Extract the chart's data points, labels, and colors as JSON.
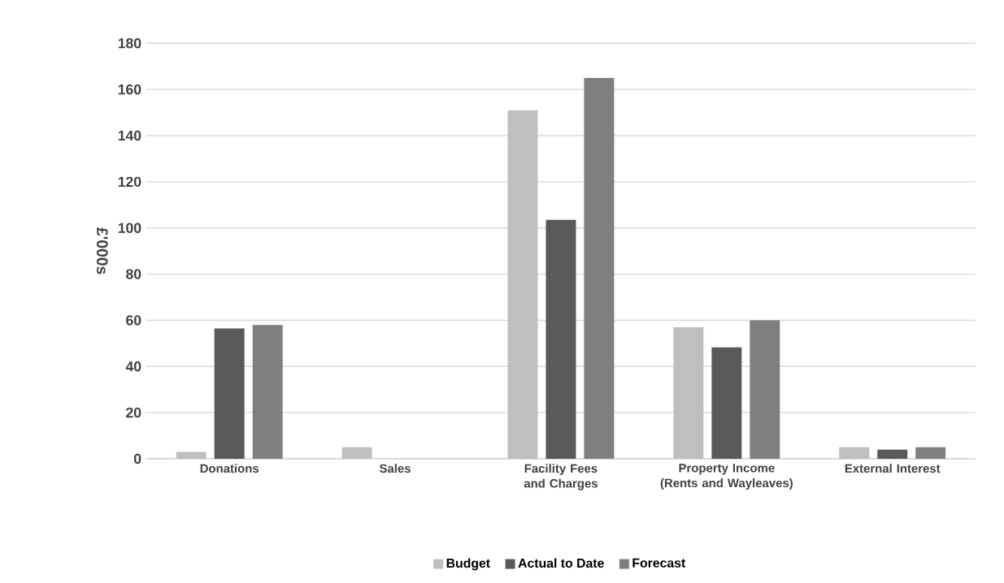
{
  "chart_data": {
    "type": "bar",
    "ylabel": "£'000s",
    "categories": [
      "Donations",
      "Sales",
      "Facility Fees and Charges",
      "Property Income (Rents and Wayleaves)",
      "External Interest"
    ],
    "series": [
      {
        "name": "Budget",
        "color": "#bfbfbf",
        "values": [
          3,
          5,
          151,
          57,
          5
        ]
      },
      {
        "name": "Actual to Date",
        "color": "#595959",
        "values": [
          56.5,
          0,
          103.5,
          48.3,
          4
        ]
      },
      {
        "name": "Forecast",
        "color": "#7f7f7f",
        "values": [
          58,
          0,
          165,
          60,
          5
        ]
      }
    ],
    "ylim": [
      0,
      180
    ],
    "yticks": [
      0,
      20,
      40,
      60,
      80,
      100,
      120,
      140,
      160,
      180
    ],
    "grid": "y",
    "legend": "bottom"
  }
}
